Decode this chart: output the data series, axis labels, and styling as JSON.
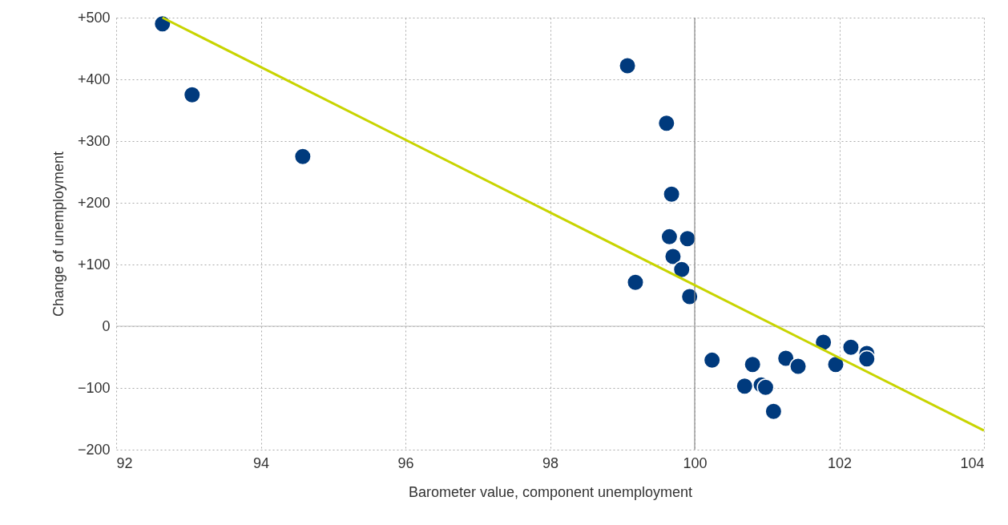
{
  "chart_data": {
    "type": "scatter",
    "xlabel": "Barometer value, component unemployment",
    "ylabel": "Change of unemployment",
    "xlim": [
      92,
      104
    ],
    "xticks": [
      92,
      94,
      96,
      98,
      100,
      102,
      104
    ],
    "ylim": [
      -200,
      500
    ],
    "yticks": [
      {
        "value": -200,
        "label": "−200"
      },
      {
        "value": -100,
        "label": "−100"
      },
      0,
      {
        "value": 100,
        "label": "+100"
      },
      {
        "value": 200,
        "label": "+200"
      },
      {
        "value": 300,
        "label": "+300"
      },
      {
        "value": 400,
        "label": "+400"
      },
      {
        "value": 500,
        "label": "+500"
      }
    ],
    "grid": true,
    "ref_lines": [
      {
        "axis": "x",
        "value": 100,
        "color": "#8c8c8c"
      },
      {
        "axis": "y",
        "value": 0,
        "color": "#bdbdbd"
      }
    ],
    "series": [
      {
        "color": "#003a7d",
        "marker": "circle",
        "x": [
          92.64,
          93.05,
          94.58,
          99.07,
          99.61,
          99.68,
          99.65,
          99.9,
          99.7,
          99.82,
          99.18,
          99.93,
          100.24,
          100.69,
          100.8,
          100.92,
          100.98,
          101.09,
          101.26,
          101.43,
          101.78,
          101.95,
          102.16,
          102.38,
          102.38
        ],
        "values": [
          490,
          375,
          275,
          422,
          329,
          214,
          145,
          142,
          113,
          92,
          71,
          48,
          -55,
          -97,
          -62,
          -95,
          -99,
          -138,
          -52,
          -65,
          -26,
          -62,
          -34,
          -44,
          -53
        ]
      },
      {
        "type": "line",
        "color": "#c8d400",
        "x": [
          92.64,
          104
        ],
        "values": [
          500,
          -169
        ]
      }
    ]
  }
}
